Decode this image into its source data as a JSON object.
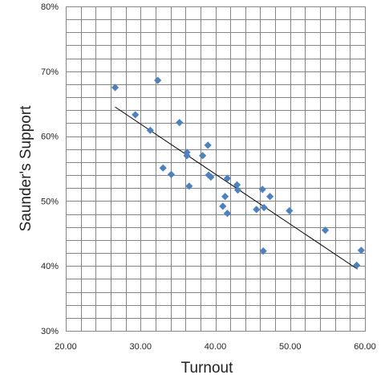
{
  "chart_data": {
    "type": "scatter",
    "xlabel": "Turnout",
    "ylabel": "Saunder's Support",
    "xlim": [
      20,
      60
    ],
    "ylim": [
      0.3,
      0.8
    ],
    "x_ticks": [
      "20.00",
      "30.00",
      "40.00",
      "50.00",
      "60.00"
    ],
    "y_ticks": [
      "30%",
      "40%",
      "50%",
      "60%",
      "70%",
      "80%"
    ],
    "x_minor_step": 2,
    "y_minor_step": 0.02,
    "grid": true,
    "legend": "none",
    "trendline": {
      "type": "linear",
      "x": [
        26.6,
        59.0
      ],
      "y": [
        0.645,
        0.395
      ]
    },
    "points": [
      {
        "x": 26.6,
        "y": 0.675
      },
      {
        "x": 29.3,
        "y": 0.633
      },
      {
        "x": 31.3,
        "y": 0.609
      },
      {
        "x": 32.3,
        "y": 0.686
      },
      {
        "x": 33.0,
        "y": 0.551
      },
      {
        "x": 34.1,
        "y": 0.541
      },
      {
        "x": 35.2,
        "y": 0.621
      },
      {
        "x": 36.2,
        "y": 0.575
      },
      {
        "x": 36.2,
        "y": 0.57
      },
      {
        "x": 36.5,
        "y": 0.523
      },
      {
        "x": 38.3,
        "y": 0.57
      },
      {
        "x": 39.0,
        "y": 0.586
      },
      {
        "x": 39.1,
        "y": 0.54
      },
      {
        "x": 39.4,
        "y": 0.537
      },
      {
        "x": 41.0,
        "y": 0.492
      },
      {
        "x": 41.3,
        "y": 0.507
      },
      {
        "x": 41.6,
        "y": 0.535
      },
      {
        "x": 41.6,
        "y": 0.481
      },
      {
        "x": 42.9,
        "y": 0.525
      },
      {
        "x": 43.0,
        "y": 0.517
      },
      {
        "x": 45.5,
        "y": 0.487
      },
      {
        "x": 46.3,
        "y": 0.518
      },
      {
        "x": 46.5,
        "y": 0.49
      },
      {
        "x": 46.4,
        "y": 0.423
      },
      {
        "x": 47.3,
        "y": 0.507
      },
      {
        "x": 49.9,
        "y": 0.485
      },
      {
        "x": 54.7,
        "y": 0.455
      },
      {
        "x": 58.9,
        "y": 0.401
      },
      {
        "x": 59.5,
        "y": 0.424
      }
    ],
    "colors": {
      "marker": "#4f81bd",
      "trendline": "#000000",
      "grid": "#868686",
      "axis": "#868686"
    }
  }
}
